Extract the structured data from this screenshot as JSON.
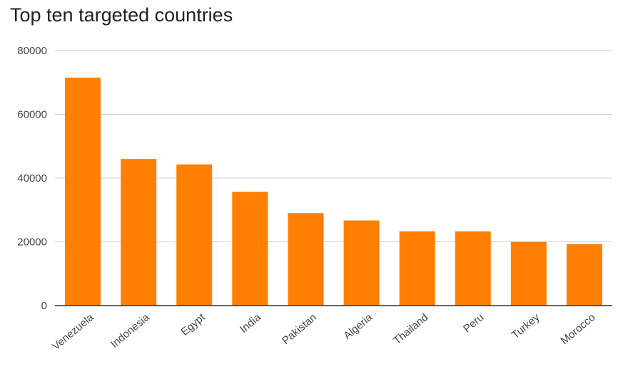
{
  "chart_data": {
    "type": "bar",
    "title": "Top ten targeted countries",
    "xlabel": "",
    "ylabel": "",
    "categories": [
      "Venezuela",
      "Indonesia",
      "Egypt",
      "India",
      "Pakistan",
      "Algeria",
      "Thailand",
      "Peru",
      "Turkey",
      "Morocco"
    ],
    "values": [
      71500,
      46000,
      44300,
      35700,
      29000,
      26700,
      23300,
      23300,
      20000,
      19300
    ],
    "ylim": [
      0,
      80000
    ],
    "yticks": [
      "0",
      "20000",
      "40000",
      "60000",
      "80000"
    ],
    "bar_color": "#ff7f00",
    "grid": true,
    "legend": "none"
  }
}
